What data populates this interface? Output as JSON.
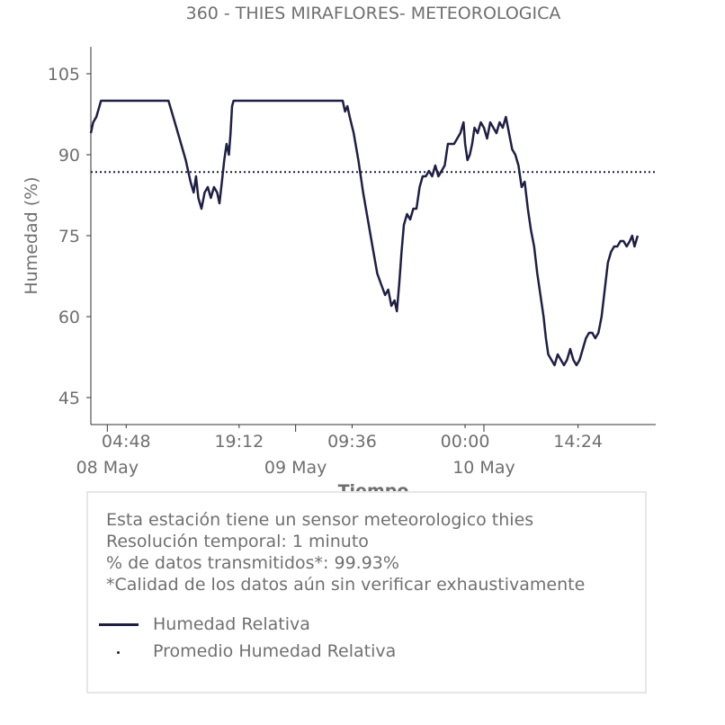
{
  "chart_data": {
    "type": "line",
    "title": "360 - THIES MIRAFLORES- METEOROLOGICA",
    "xlabel": "Tiempo",
    "ylabel": "Humedad (%)",
    "ylim": [
      40,
      110
    ],
    "yticks": [
      45,
      60,
      75,
      90,
      105
    ],
    "x_unit": "hours since 08 May 00:00",
    "xlim": [
      0.3,
      72.3
    ],
    "xticks_minor": [
      {
        "x": 4.8,
        "label": "04:48"
      },
      {
        "x": 19.2,
        "label": "19:12"
      },
      {
        "x": 33.6,
        "label": "09:36"
      },
      {
        "x": 48.0,
        "label": "00:00"
      },
      {
        "x": 62.4,
        "label": "14:24"
      }
    ],
    "xticks_major": [
      {
        "x": 2.4,
        "label": "08 May"
      },
      {
        "x": 26.4,
        "label": "09 May"
      },
      {
        "x": 50.4,
        "label": "10 May"
      }
    ],
    "grid": false,
    "average": 86.8,
    "series": [
      {
        "name": "Humedad Relativa",
        "color": "#1f1f45",
        "points": [
          [
            0.3,
            94
          ],
          [
            0.6,
            96
          ],
          [
            1.0,
            97
          ],
          [
            1.4,
            99
          ],
          [
            1.6,
            100
          ],
          [
            4.0,
            100
          ],
          [
            7.0,
            100
          ],
          [
            10.2,
            100
          ],
          [
            10.8,
            97
          ],
          [
            11.6,
            93
          ],
          [
            12.4,
            89
          ],
          [
            13.0,
            85
          ],
          [
            13.4,
            83
          ],
          [
            13.7,
            86
          ],
          [
            14.0,
            82
          ],
          [
            14.4,
            80
          ],
          [
            14.8,
            83
          ],
          [
            15.2,
            84
          ],
          [
            15.6,
            82
          ],
          [
            16.0,
            84
          ],
          [
            16.4,
            83
          ],
          [
            16.7,
            81
          ],
          [
            17.0,
            85
          ],
          [
            17.3,
            89
          ],
          [
            17.6,
            92
          ],
          [
            17.9,
            90
          ],
          [
            18.1,
            94
          ],
          [
            18.3,
            99
          ],
          [
            18.5,
            100
          ],
          [
            22.0,
            100
          ],
          [
            26.0,
            100
          ],
          [
            31.0,
            100
          ],
          [
            32.4,
            100
          ],
          [
            32.7,
            98
          ],
          [
            33.0,
            99
          ],
          [
            33.3,
            97
          ],
          [
            33.8,
            94
          ],
          [
            34.4,
            89
          ],
          [
            35.0,
            83
          ],
          [
            35.6,
            78
          ],
          [
            36.2,
            73
          ],
          [
            36.8,
            68
          ],
          [
            37.3,
            66
          ],
          [
            37.8,
            64
          ],
          [
            38.2,
            65
          ],
          [
            38.6,
            62
          ],
          [
            39.0,
            63
          ],
          [
            39.3,
            61
          ],
          [
            39.6,
            66
          ],
          [
            39.9,
            72
          ],
          [
            40.2,
            77
          ],
          [
            40.6,
            79
          ],
          [
            41.0,
            78
          ],
          [
            41.4,
            80
          ],
          [
            41.8,
            80
          ],
          [
            42.2,
            84
          ],
          [
            42.6,
            86
          ],
          [
            43.0,
            86
          ],
          [
            43.4,
            87
          ],
          [
            43.8,
            86
          ],
          [
            44.2,
            88
          ],
          [
            44.6,
            86
          ],
          [
            45.0,
            87
          ],
          [
            45.4,
            88
          ],
          [
            45.8,
            92
          ],
          [
            46.2,
            92
          ],
          [
            46.6,
            92
          ],
          [
            47.0,
            93
          ],
          [
            47.4,
            94
          ],
          [
            47.8,
            96
          ],
          [
            48.0,
            92
          ],
          [
            48.3,
            89
          ],
          [
            48.6,
            90
          ],
          [
            48.9,
            92
          ],
          [
            49.2,
            95
          ],
          [
            49.6,
            94
          ],
          [
            50.0,
            96
          ],
          [
            50.4,
            95
          ],
          [
            50.8,
            93
          ],
          [
            51.2,
            96
          ],
          [
            51.6,
            95
          ],
          [
            52.0,
            94
          ],
          [
            52.4,
            96
          ],
          [
            52.8,
            95
          ],
          [
            53.2,
            97
          ],
          [
            53.6,
            94
          ],
          [
            54.0,
            91
          ],
          [
            54.4,
            90
          ],
          [
            54.8,
            88
          ],
          [
            55.2,
            84
          ],
          [
            55.6,
            85
          ],
          [
            56.0,
            80
          ],
          [
            56.4,
            76
          ],
          [
            56.8,
            73
          ],
          [
            57.2,
            68
          ],
          [
            57.6,
            64
          ],
          [
            58.0,
            60
          ],
          [
            58.3,
            56
          ],
          [
            58.6,
            53
          ],
          [
            59.0,
            52
          ],
          [
            59.4,
            51
          ],
          [
            59.8,
            53
          ],
          [
            60.2,
            52
          ],
          [
            60.6,
            51
          ],
          [
            61.0,
            52
          ],
          [
            61.4,
            54
          ],
          [
            61.8,
            52
          ],
          [
            62.2,
            51
          ],
          [
            62.6,
            52
          ],
          [
            63.0,
            54
          ],
          [
            63.4,
            56
          ],
          [
            63.8,
            57
          ],
          [
            64.2,
            57
          ],
          [
            64.6,
            56
          ],
          [
            65.0,
            57
          ],
          [
            65.4,
            60
          ],
          [
            65.8,
            65
          ],
          [
            66.2,
            70
          ],
          [
            66.6,
            72
          ],
          [
            67.0,
            73
          ],
          [
            67.4,
            73
          ],
          [
            67.8,
            74
          ],
          [
            68.2,
            74
          ],
          [
            68.6,
            73
          ],
          [
            69.0,
            74
          ],
          [
            69.3,
            75
          ],
          [
            69.6,
            73
          ],
          [
            70.0,
            75
          ]
        ]
      }
    ]
  },
  "info": {
    "lines": [
      "Esta estación tiene un sensor meteorologico thies",
      "Resolución temporal: 1 minuto",
      "% de datos transmitidos*: 99.93%",
      "*Calidad de los datos aún sin verificar exhaustivamente"
    ],
    "legend": {
      "line_label": "Humedad Relativa",
      "avg_label": "Promedio Humedad Relativa"
    }
  }
}
